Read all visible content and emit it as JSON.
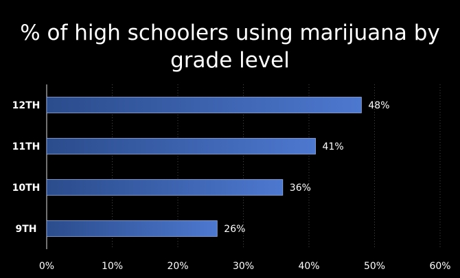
{
  "chart_data": {
    "type": "bar",
    "orientation": "horizontal",
    "title_lines": [
      "% of high schoolers using marijuana by",
      "grade level"
    ],
    "categories": [
      "12TH",
      "11TH",
      "10TH",
      "9TH"
    ],
    "values": [
      48,
      41,
      36,
      26
    ],
    "value_labels": [
      "48%",
      "41%",
      "36%",
      "26%"
    ],
    "xlim": [
      0,
      60
    ],
    "x_ticks": [
      0,
      10,
      20,
      30,
      40,
      50,
      60
    ],
    "x_tick_labels": [
      "0%",
      "10%",
      "20%",
      "30%",
      "40%",
      "50%",
      "60%"
    ],
    "xlabel": "",
    "ylabel": "",
    "grid": "vertical dotted",
    "legend": "none",
    "colors": {
      "background": "#000000",
      "bar_dark": "#2b4c8c",
      "bar_light": "#4d78cf",
      "text": "#ffffff",
      "grid": "#4a4a4a",
      "axis": "#bfbfbf"
    }
  }
}
